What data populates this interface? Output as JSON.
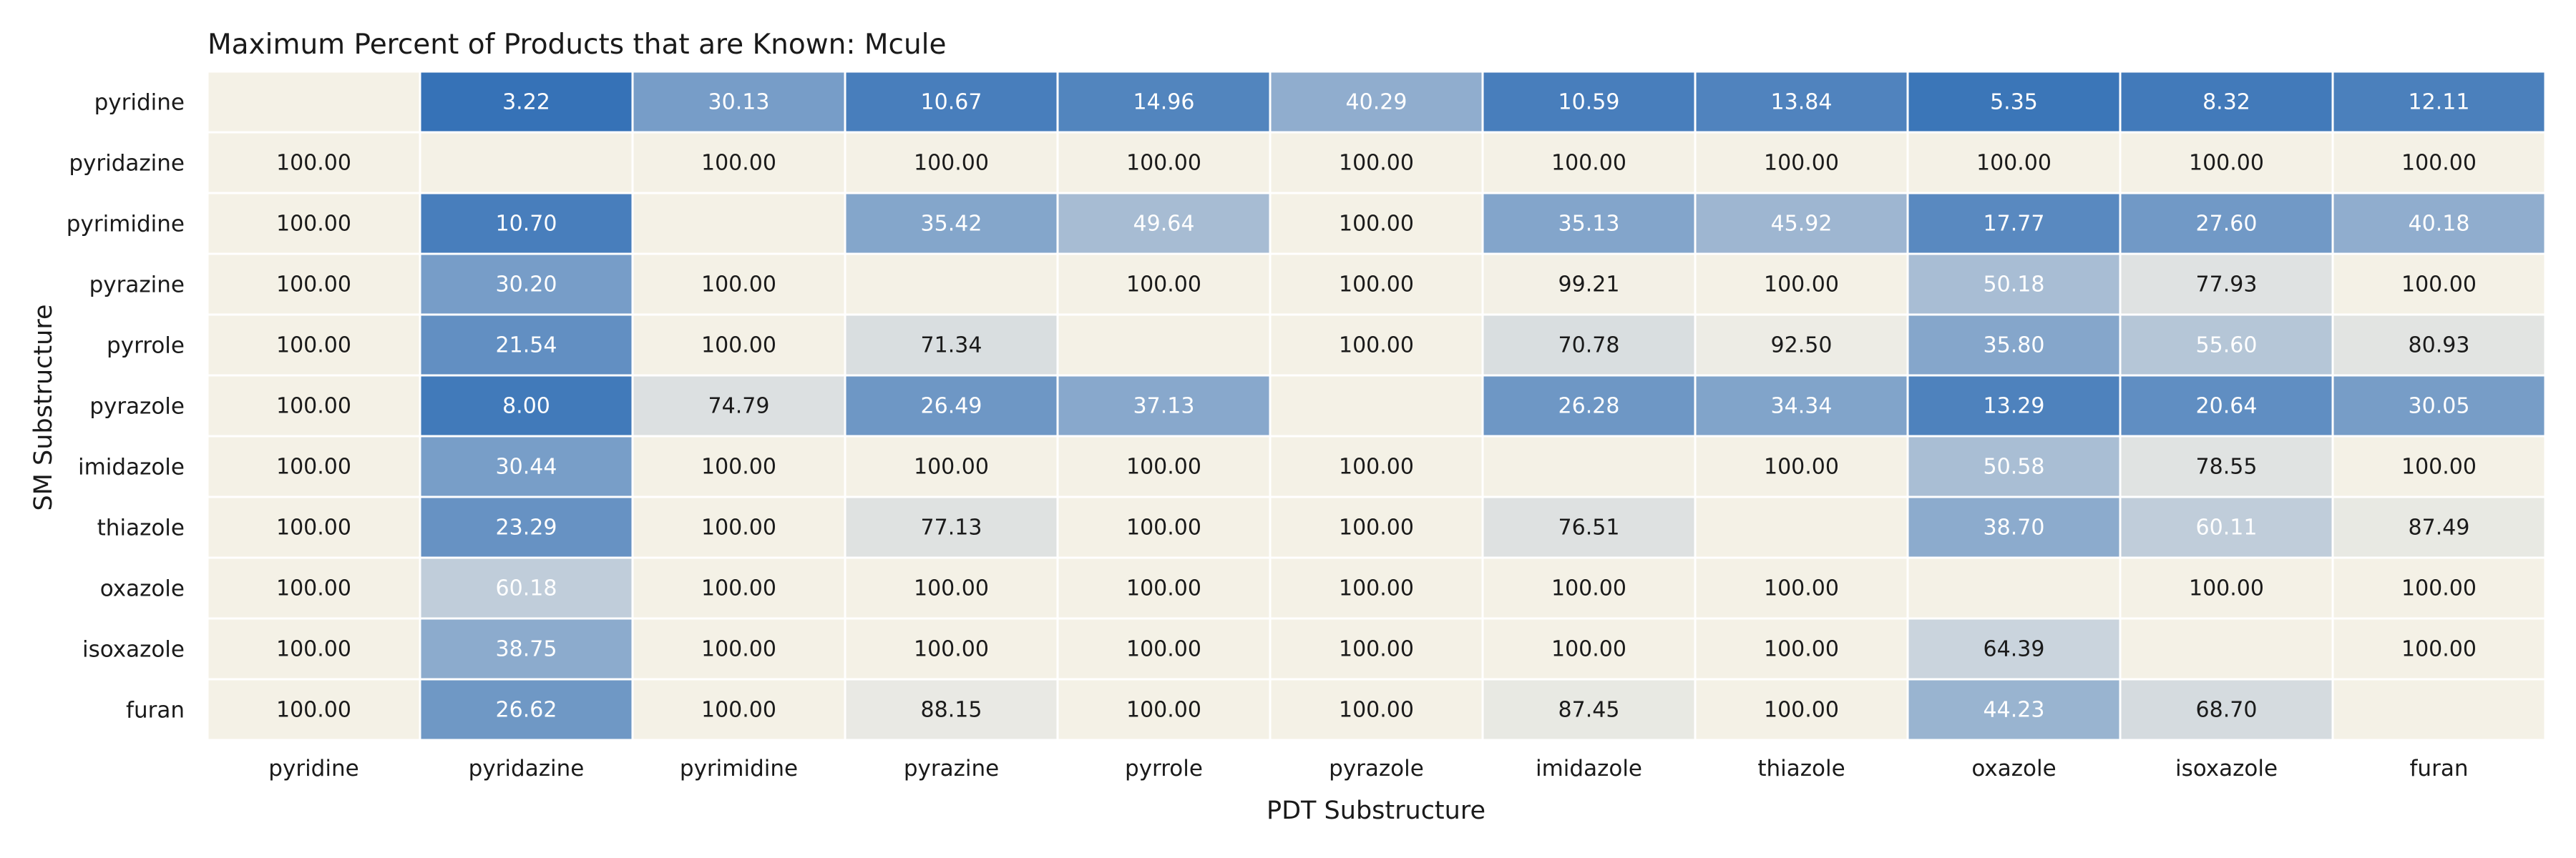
{
  "chart_data": {
    "type": "heatmap",
    "title": "Maximum Percent of Products that are Known: Mcule",
    "xlabel": "PDT Substructure",
    "ylabel": "SM Substructure",
    "x_categories": [
      "pyridine",
      "pyridazine",
      "pyrimidine",
      "pyrazine",
      "pyrrole",
      "pyrazole",
      "imidazole",
      "thiazole",
      "oxazole",
      "isoxazole",
      "furan"
    ],
    "y_categories": [
      "pyridine",
      "pyridazine",
      "pyrimidine",
      "pyrazine",
      "pyrrole",
      "pyrazole",
      "imidazole",
      "thiazole",
      "oxazole",
      "isoxazole",
      "furan"
    ],
    "values": [
      [
        null,
        3.22,
        30.13,
        10.67,
        14.96,
        40.29,
        10.59,
        13.84,
        5.35,
        8.32,
        12.11
      ],
      [
        100.0,
        null,
        100.0,
        100.0,
        100.0,
        100.0,
        100.0,
        100.0,
        100.0,
        100.0,
        100.0
      ],
      [
        100.0,
        10.7,
        null,
        35.42,
        49.64,
        100.0,
        35.13,
        45.92,
        17.77,
        27.6,
        40.18
      ],
      [
        100.0,
        30.2,
        100.0,
        null,
        100.0,
        100.0,
        99.21,
        100.0,
        50.18,
        77.93,
        100.0
      ],
      [
        100.0,
        21.54,
        100.0,
        71.34,
        null,
        100.0,
        70.78,
        92.5,
        35.8,
        55.6,
        80.93
      ],
      [
        100.0,
        8.0,
        74.79,
        26.49,
        37.13,
        null,
        26.28,
        34.34,
        13.29,
        20.64,
        30.05
      ],
      [
        100.0,
        30.44,
        100.0,
        100.0,
        100.0,
        100.0,
        null,
        100.0,
        50.58,
        78.55,
        100.0
      ],
      [
        100.0,
        23.29,
        100.0,
        77.13,
        100.0,
        100.0,
        76.51,
        null,
        38.7,
        60.11,
        87.49
      ],
      [
        100.0,
        60.18,
        100.0,
        100.0,
        100.0,
        100.0,
        100.0,
        100.0,
        null,
        100.0,
        100.0
      ],
      [
        100.0,
        38.75,
        100.0,
        100.0,
        100.0,
        100.0,
        100.0,
        100.0,
        64.39,
        null,
        100.0
      ],
      [
        100.0,
        26.62,
        100.0,
        88.15,
        100.0,
        100.0,
        87.45,
        100.0,
        44.23,
        68.7,
        null
      ]
    ],
    "value_range": [
      0,
      100
    ],
    "colormap": {
      "low": "#2e6db5",
      "mid": "#d8dde0",
      "high": "#f4f1e6"
    },
    "empty_cell_color": "#f4f1e6",
    "text_color_dark": "#1a1a1a",
    "text_color_light": "#ffffff",
    "grid_lines": true,
    "grid_line_color": "#ffffff",
    "colorbar": false
  }
}
